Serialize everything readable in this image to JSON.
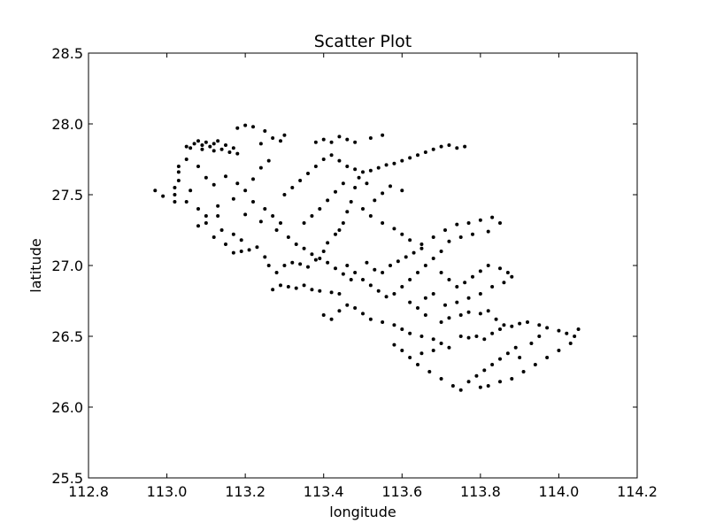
{
  "chart_data": {
    "type": "scatter",
    "title": "Scatter Plot",
    "xlabel": "longitude",
    "ylabel": "latitude",
    "xlim": [
      112.8,
      114.2
    ],
    "ylim": [
      25.5,
      28.5
    ],
    "xticks": [
      "112.8",
      "113.0",
      "113.2",
      "113.4",
      "113.6",
      "113.8",
      "114.0",
      "114.2"
    ],
    "yticks": [
      "25.5",
      "26.0",
      "26.5",
      "27.0",
      "27.5",
      "28.0",
      "28.5"
    ],
    "grid": false,
    "legend": "none",
    "marker_color": "#000000",
    "series": [
      {
        "values": [
          [
            112.97,
            27.53
          ],
          [
            112.99,
            27.49
          ],
          [
            113.02,
            27.45
          ],
          [
            113.02,
            27.5
          ],
          [
            113.02,
            27.55
          ],
          [
            113.03,
            27.6
          ],
          [
            113.03,
            27.66
          ],
          [
            113.03,
            27.7
          ],
          [
            113.05,
            27.84
          ],
          [
            113.07,
            27.86
          ],
          [
            113.08,
            27.88
          ],
          [
            113.09,
            27.85
          ],
          [
            113.1,
            27.87
          ],
          [
            113.11,
            27.84
          ],
          [
            113.12,
            27.86
          ],
          [
            113.13,
            27.88
          ],
          [
            113.14,
            27.82
          ],
          [
            113.15,
            27.85
          ],
          [
            113.16,
            27.8
          ],
          [
            113.17,
            27.83
          ],
          [
            113.18,
            27.79
          ],
          [
            113.09,
            27.82
          ],
          [
            113.12,
            27.81
          ],
          [
            113.06,
            27.83
          ],
          [
            113.18,
            27.97
          ],
          [
            113.2,
            27.99
          ],
          [
            113.22,
            27.98
          ],
          [
            113.25,
            27.95
          ],
          [
            113.27,
            27.9
          ],
          [
            113.29,
            27.88
          ],
          [
            113.3,
            27.92
          ],
          [
            113.24,
            27.86
          ],
          [
            113.05,
            27.75
          ],
          [
            113.08,
            27.7
          ],
          [
            113.1,
            27.62
          ],
          [
            113.12,
            27.57
          ],
          [
            113.15,
            27.63
          ],
          [
            113.18,
            27.58
          ],
          [
            113.06,
            27.53
          ],
          [
            113.05,
            27.45
          ],
          [
            113.08,
            27.4
          ],
          [
            113.1,
            27.35
          ],
          [
            113.13,
            27.42
          ],
          [
            113.17,
            27.47
          ],
          [
            113.2,
            27.53
          ],
          [
            113.22,
            27.61
          ],
          [
            113.24,
            27.69
          ],
          [
            113.26,
            27.74
          ],
          [
            113.22,
            27.45
          ],
          [
            113.25,
            27.4
          ],
          [
            113.27,
            27.35
          ],
          [
            113.29,
            27.3
          ],
          [
            113.24,
            27.31
          ],
          [
            113.2,
            27.36
          ],
          [
            113.28,
            27.25
          ],
          [
            113.31,
            27.2
          ],
          [
            113.17,
            27.09
          ],
          [
            113.19,
            27.1
          ],
          [
            113.21,
            27.11
          ],
          [
            113.23,
            27.13
          ],
          [
            113.25,
            27.06
          ],
          [
            113.26,
            27.0
          ],
          [
            113.28,
            26.95
          ],
          [
            113.27,
            26.83
          ],
          [
            113.29,
            26.86
          ],
          [
            113.31,
            26.85
          ],
          [
            113.33,
            26.84
          ],
          [
            113.35,
            26.86
          ],
          [
            113.37,
            26.83
          ],
          [
            113.39,
            26.82
          ],
          [
            113.42,
            26.81
          ],
          [
            113.44,
            26.8
          ],
          [
            113.3,
            27.0
          ],
          [
            113.32,
            27.02
          ],
          [
            113.34,
            27.01
          ],
          [
            113.36,
            26.99
          ],
          [
            113.38,
            27.04
          ],
          [
            113.4,
            27.1
          ],
          [
            113.41,
            27.16
          ],
          [
            113.43,
            27.22
          ],
          [
            113.3,
            27.5
          ],
          [
            113.32,
            27.55
          ],
          [
            113.34,
            27.6
          ],
          [
            113.36,
            27.65
          ],
          [
            113.38,
            27.7
          ],
          [
            113.4,
            27.75
          ],
          [
            113.42,
            27.78
          ],
          [
            113.44,
            27.74
          ],
          [
            113.46,
            27.7
          ],
          [
            113.48,
            27.68
          ],
          [
            113.5,
            27.66
          ],
          [
            113.52,
            27.67
          ],
          [
            113.54,
            27.69
          ],
          [
            113.56,
            27.71
          ],
          [
            113.58,
            27.72
          ],
          [
            113.6,
            27.74
          ],
          [
            113.62,
            27.76
          ],
          [
            113.64,
            27.78
          ],
          [
            113.66,
            27.8
          ],
          [
            113.68,
            27.82
          ],
          [
            113.7,
            27.84
          ],
          [
            113.72,
            27.85
          ],
          [
            113.74,
            27.83
          ],
          [
            113.76,
            27.84
          ],
          [
            113.38,
            27.87
          ],
          [
            113.4,
            27.89
          ],
          [
            113.42,
            27.87
          ],
          [
            113.44,
            27.91
          ],
          [
            113.46,
            27.89
          ],
          [
            113.48,
            27.87
          ],
          [
            113.52,
            27.9
          ],
          [
            113.55,
            27.92
          ],
          [
            113.48,
            27.55
          ],
          [
            113.47,
            27.45
          ],
          [
            113.46,
            27.38
          ],
          [
            113.45,
            27.3
          ],
          [
            113.44,
            27.25
          ],
          [
            113.5,
            27.4
          ],
          [
            113.53,
            27.46
          ],
          [
            113.55,
            27.51
          ],
          [
            113.57,
            27.56
          ],
          [
            113.6,
            27.53
          ],
          [
            113.52,
            27.35
          ],
          [
            113.55,
            27.3
          ],
          [
            113.58,
            27.26
          ],
          [
            113.6,
            27.22
          ],
          [
            113.62,
            27.18
          ],
          [
            113.65,
            27.15
          ],
          [
            113.68,
            27.2
          ],
          [
            113.71,
            27.25
          ],
          [
            113.74,
            27.29
          ],
          [
            113.77,
            27.3
          ],
          [
            113.8,
            27.32
          ],
          [
            113.83,
            27.34
          ],
          [
            113.85,
            27.3
          ],
          [
            113.82,
            27.24
          ],
          [
            113.78,
            27.22
          ],
          [
            113.75,
            27.2
          ],
          [
            113.72,
            27.17
          ],
          [
            113.7,
            27.1
          ],
          [
            113.68,
            27.05
          ],
          [
            113.66,
            27.0
          ],
          [
            113.64,
            26.95
          ],
          [
            113.62,
            26.9
          ],
          [
            113.6,
            26.85
          ],
          [
            113.58,
            26.8
          ],
          [
            113.56,
            26.78
          ],
          [
            113.54,
            26.82
          ],
          [
            113.52,
            26.86
          ],
          [
            113.5,
            26.9
          ],
          [
            113.48,
            26.95
          ],
          [
            113.46,
            27.0
          ],
          [
            113.7,
            26.95
          ],
          [
            113.72,
            26.9
          ],
          [
            113.74,
            26.85
          ],
          [
            113.76,
            26.88
          ],
          [
            113.78,
            26.92
          ],
          [
            113.8,
            26.96
          ],
          [
            113.82,
            27.0
          ],
          [
            113.85,
            26.98
          ],
          [
            113.87,
            26.95
          ],
          [
            113.88,
            26.92
          ],
          [
            113.86,
            26.88
          ],
          [
            113.83,
            26.85
          ],
          [
            113.8,
            26.8
          ],
          [
            113.77,
            26.77
          ],
          [
            113.74,
            26.74
          ],
          [
            113.71,
            26.72
          ],
          [
            113.4,
            26.65
          ],
          [
            113.42,
            26.62
          ],
          [
            113.44,
            26.68
          ],
          [
            113.46,
            26.72
          ],
          [
            113.48,
            26.7
          ],
          [
            113.5,
            26.66
          ],
          [
            113.52,
            26.62
          ],
          [
            113.55,
            26.6
          ],
          [
            113.58,
            26.58
          ],
          [
            113.6,
            26.55
          ],
          [
            113.62,
            26.52
          ],
          [
            113.65,
            26.5
          ],
          [
            113.68,
            26.48
          ],
          [
            113.7,
            26.45
          ],
          [
            113.72,
            26.42
          ],
          [
            113.68,
            26.4
          ],
          [
            113.65,
            26.38
          ],
          [
            113.62,
            26.35
          ],
          [
            113.6,
            26.4
          ],
          [
            113.58,
            26.44
          ],
          [
            113.64,
            26.3
          ],
          [
            113.67,
            26.25
          ],
          [
            113.7,
            26.2
          ],
          [
            113.73,
            26.15
          ],
          [
            113.75,
            26.12
          ],
          [
            113.77,
            26.18
          ],
          [
            113.79,
            26.22
          ],
          [
            113.81,
            26.26
          ],
          [
            113.83,
            26.3
          ],
          [
            113.85,
            26.34
          ],
          [
            113.87,
            26.38
          ],
          [
            113.89,
            26.42
          ],
          [
            113.75,
            26.5
          ],
          [
            113.77,
            26.49
          ],
          [
            113.79,
            26.5
          ],
          [
            113.81,
            26.48
          ],
          [
            113.83,
            26.52
          ],
          [
            113.85,
            26.55
          ],
          [
            113.88,
            26.57
          ],
          [
            113.9,
            26.59
          ],
          [
            113.92,
            26.6
          ],
          [
            113.95,
            26.58
          ],
          [
            113.97,
            26.56
          ],
          [
            114.0,
            26.54
          ],
          [
            114.02,
            26.52
          ],
          [
            114.04,
            26.5
          ],
          [
            114.05,
            26.55
          ],
          [
            114.03,
            26.45
          ],
          [
            114.0,
            26.4
          ],
          [
            113.97,
            26.35
          ],
          [
            113.94,
            26.3
          ],
          [
            113.91,
            26.25
          ],
          [
            113.88,
            26.2
          ],
          [
            113.85,
            26.18
          ],
          [
            113.82,
            26.15
          ],
          [
            113.8,
            26.14
          ],
          [
            113.7,
            26.6
          ],
          [
            113.72,
            26.63
          ],
          [
            113.75,
            26.65
          ],
          [
            113.77,
            26.67
          ],
          [
            113.8,
            26.66
          ],
          [
            113.82,
            26.68
          ],
          [
            113.84,
            26.62
          ],
          [
            113.86,
            26.58
          ],
          [
            113.35,
            27.3
          ],
          [
            113.37,
            27.35
          ],
          [
            113.39,
            27.4
          ],
          [
            113.41,
            27.46
          ],
          [
            113.43,
            27.52
          ],
          [
            113.45,
            27.58
          ],
          [
            113.49,
            27.62
          ],
          [
            113.51,
            27.58
          ],
          [
            113.33,
            27.15
          ],
          [
            113.35,
            27.12
          ],
          [
            113.37,
            27.08
          ],
          [
            113.39,
            27.05
          ],
          [
            113.41,
            27.02
          ],
          [
            113.43,
            26.98
          ],
          [
            113.45,
            26.94
          ],
          [
            113.47,
            26.9
          ],
          [
            113.08,
            27.28
          ],
          [
            113.1,
            27.3
          ],
          [
            113.14,
            27.25
          ],
          [
            113.17,
            27.22
          ],
          [
            113.19,
            27.18
          ],
          [
            113.12,
            27.2
          ],
          [
            113.15,
            27.15
          ],
          [
            113.13,
            27.35
          ],
          [
            113.57,
            27.0
          ],
          [
            113.59,
            27.03
          ],
          [
            113.61,
            27.06
          ],
          [
            113.63,
            27.09
          ],
          [
            113.65,
            27.12
          ],
          [
            113.55,
            26.95
          ],
          [
            113.53,
            26.97
          ],
          [
            113.51,
            27.02
          ],
          [
            113.66,
            26.65
          ],
          [
            113.64,
            26.7
          ],
          [
            113.62,
            26.74
          ],
          [
            113.66,
            26.77
          ],
          [
            113.68,
            26.8
          ],
          [
            113.9,
            26.35
          ],
          [
            113.93,
            26.45
          ],
          [
            113.95,
            26.5
          ]
        ]
      }
    ]
  }
}
